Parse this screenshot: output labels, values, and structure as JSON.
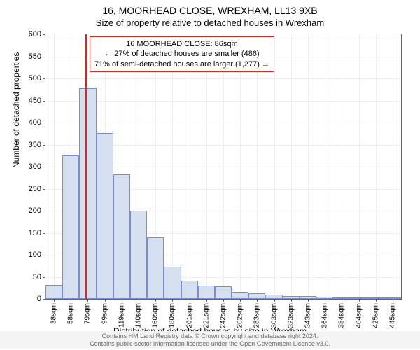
{
  "title": "16, MOORHEAD CLOSE, WREXHAM, LL13 9XB",
  "subtitle": "Size of property relative to detached houses in Wrexham",
  "y_axis": {
    "label": "Number of detached properties",
    "min": 0,
    "max": 600,
    "step": 50,
    "label_fontsize": 12,
    "tick_fontsize": 11
  },
  "x_axis": {
    "label": "Distribution of detached houses by size in Wrexham",
    "tick_suffix": "sqm",
    "label_fontsize": 12,
    "tick_fontsize": 10
  },
  "chart": {
    "type": "histogram",
    "bar_fill": "#d6dff0",
    "bar_border": "#7a8fc9",
    "grid_color": "#eeeeee",
    "axis_color": "#666666",
    "background": "#ffffff",
    "bar_width_ratio": 1.0,
    "bins": [
      {
        "label": 38,
        "value": 32
      },
      {
        "label": 58,
        "value": 325
      },
      {
        "label": 79,
        "value": 478
      },
      {
        "label": 99,
        "value": 377
      },
      {
        "label": 119,
        "value": 283
      },
      {
        "label": 140,
        "value": 200
      },
      {
        "label": 160,
        "value": 140
      },
      {
        "label": 180,
        "value": 73
      },
      {
        "label": 201,
        "value": 42
      },
      {
        "label": 221,
        "value": 30
      },
      {
        "label": 242,
        "value": 28
      },
      {
        "label": 262,
        "value": 16
      },
      {
        "label": 283,
        "value": 12
      },
      {
        "label": 303,
        "value": 10
      },
      {
        "label": 323,
        "value": 7
      },
      {
        "label": 343,
        "value": 6
      },
      {
        "label": 364,
        "value": 5
      },
      {
        "label": 384,
        "value": 2
      },
      {
        "label": 404,
        "value": 2
      },
      {
        "label": 425,
        "value": 2
      },
      {
        "label": 445,
        "value": 2
      }
    ]
  },
  "marker": {
    "color": "#d62728",
    "bin_index": 2,
    "offset_ratio": 0.35
  },
  "info_box": {
    "border_color": "#d62728",
    "fontsize": 11,
    "left_bin_index": 2,
    "left_offset_ratio": 0.6,
    "top_value": 595,
    "lines": [
      "16 MOORHEAD CLOSE: 86sqm",
      "← 27% of detached houses are smaller (486)",
      "71% of semi-detached houses are larger (1,277) →"
    ]
  },
  "footer": {
    "line1": "Contains HM Land Registry data © Crown copyright and database right 2024.",
    "line2": "Contains public sector information licensed under the Open Government Licence v3.0.",
    "background": "#f4f4f4",
    "color": "#666666",
    "fontsize": 9
  }
}
